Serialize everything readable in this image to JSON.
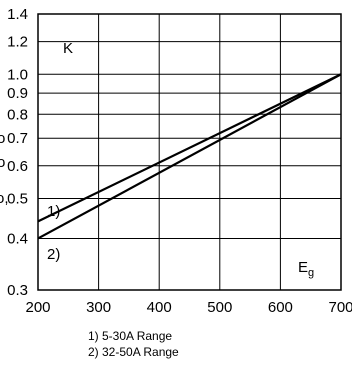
{
  "chart_data": {
    "type": "line",
    "y_scale": "log",
    "xlim": [
      200,
      700
    ],
    "ylim": [
      0.3,
      1.4
    ],
    "x_ticks": [
      "200",
      "300",
      "400",
      "500",
      "600",
      "700"
    ],
    "y_ticks": [
      {
        "value": 1.4,
        "label": "1.4"
      },
      {
        "value": 1.2,
        "label": "1.2"
      },
      {
        "value": 1.0,
        "label": "1.0"
      },
      {
        "value": 0.9,
        "label": "0.9"
      },
      {
        "value": 0.8,
        "label": "0.8"
      },
      {
        "value": 0.7,
        "label": "0.7"
      },
      {
        "value": 0.6,
        "label": "0.6"
      },
      {
        "value": 0.5,
        "label": "0.5"
      },
      {
        "value": 0.4,
        "label": "0.4"
      },
      {
        "value": 0.3,
        "label": "0.3"
      }
    ],
    "grid": true,
    "series": [
      {
        "name": "1)",
        "x": [
          200,
          700
        ],
        "y": [
          0.44,
          1.0
        ]
      },
      {
        "name": "2)",
        "x": [
          200,
          700
        ],
        "y": [
          0.4,
          1.0
        ]
      }
    ],
    "annotations": {
      "k_label": "K",
      "x_label_main": "E",
      "x_label_sub": "g",
      "curve1_label": "1)",
      "curve2_label": "2)"
    },
    "left_edge_fragments": [
      "o",
      "o",
      "o,"
    ],
    "legend_notes": [
      "1) 5-30A Range",
      "2) 32-50A Range"
    ]
  }
}
